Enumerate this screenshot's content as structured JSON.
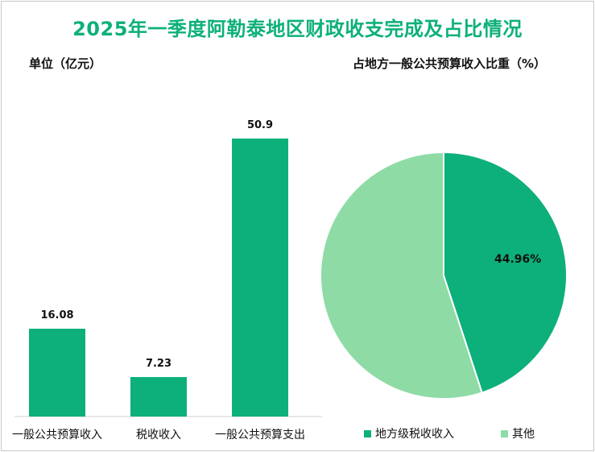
{
  "title": "2025年一季度阿勒泰地区财政收支完成及占比情况",
  "colors": {
    "primary": "#0db07a",
    "secondary": "#8edba6"
  },
  "chart_data": [
    {
      "type": "bar",
      "ylabel": "单位（亿元）",
      "categories": [
        "一般公共预算收入",
        "税收收入",
        "一般公共预算支出"
      ],
      "values": [
        16.08,
        7.23,
        50.9
      ],
      "value_labels": [
        "16.08",
        "7.23",
        "50.9"
      ],
      "color": "#0db07a"
    },
    {
      "type": "pie",
      "title": "占地方一般公共预算收入比重（%）",
      "slices": [
        {
          "name": "地方级税收收入",
          "value": 44.96,
          "label": "44.96%",
          "color": "#0db07a"
        },
        {
          "name": "其他",
          "value": 55.04,
          "label": "",
          "color": "#8edba6"
        }
      ],
      "legend_position": "bottom"
    }
  ]
}
